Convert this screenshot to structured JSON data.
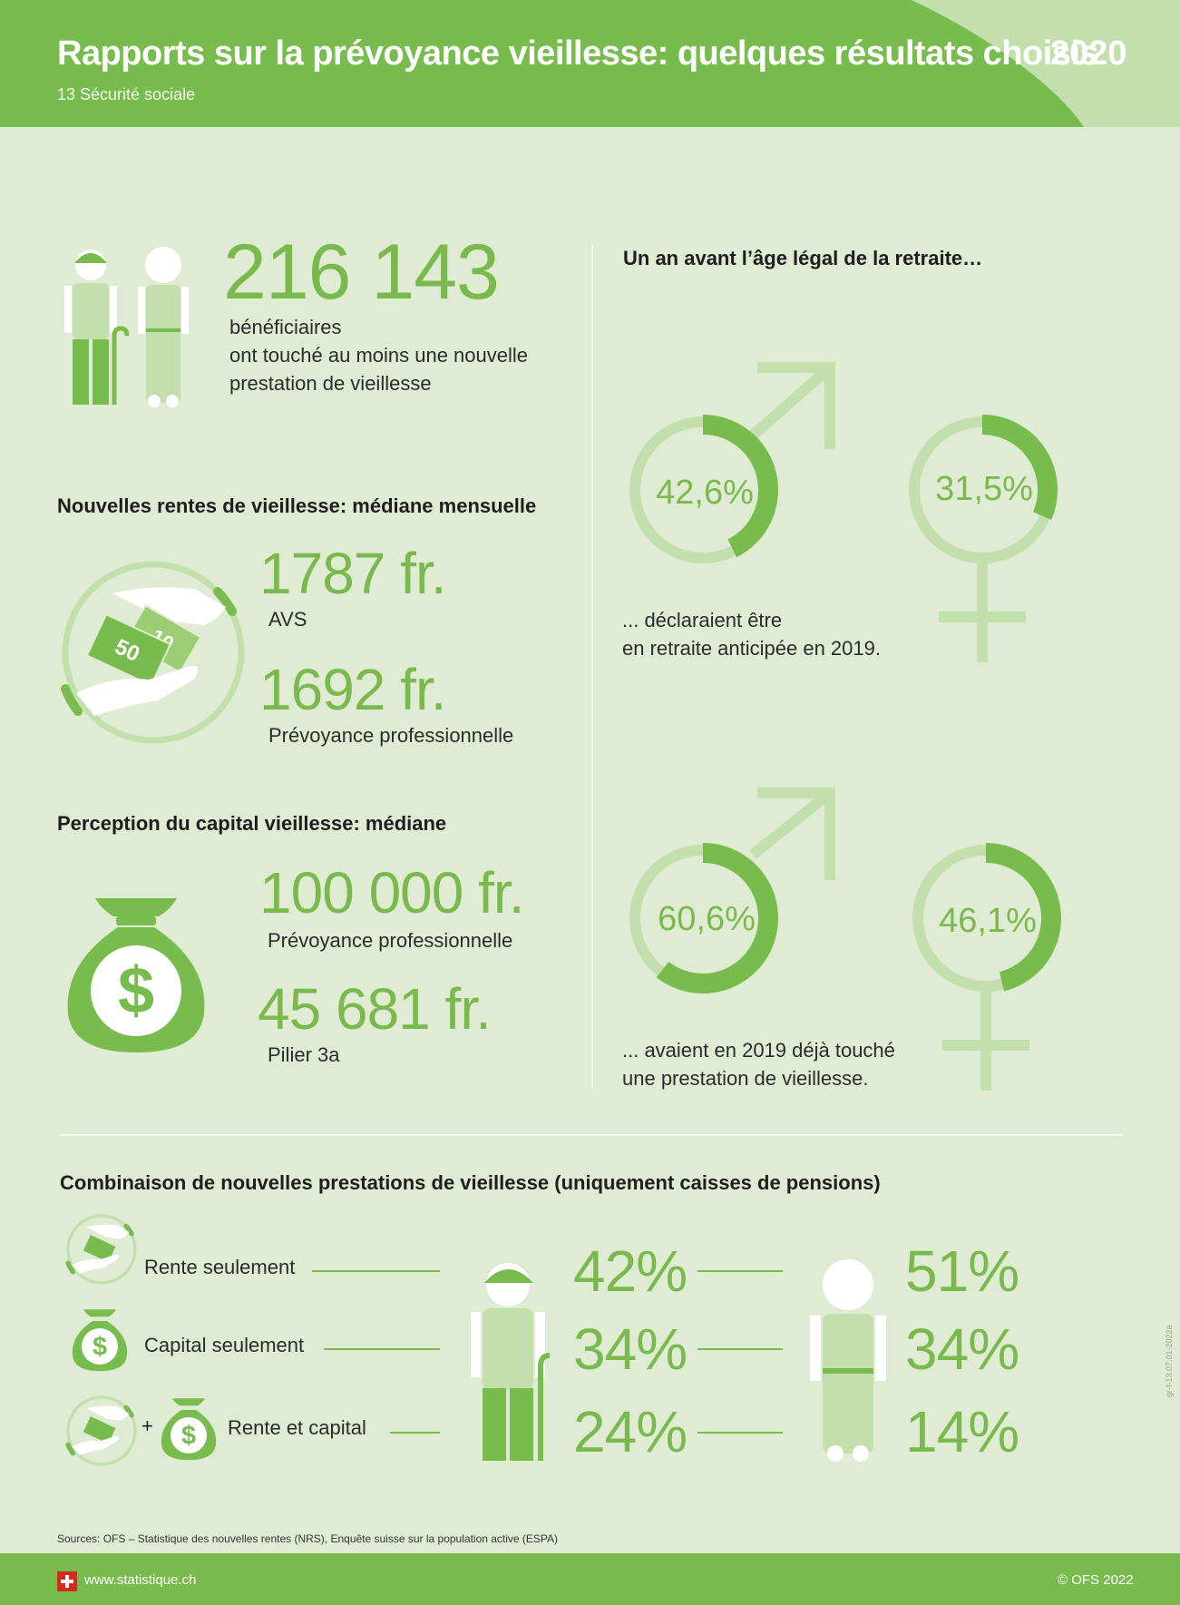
{
  "header": {
    "title": "Rapports sur la prévoyance vieillesse: quelques résultats choisis",
    "subtitle": "13 Sécurité sociale",
    "year": "2020"
  },
  "beneficiaries": {
    "value": "216 143",
    "line1": "bénéficiaires",
    "line2": "ont touché au moins une nouvelle",
    "line3": "prestation de vieillesse"
  },
  "pensions": {
    "heading": "Nouvelles rentes de vieillesse: médiane mensuelle",
    "avs_value": "1787 fr.",
    "avs_label": "AVS",
    "pp_value": "1692 fr.",
    "pp_label": "Prévoyance professionnelle",
    "note_50": "50",
    "note_10": "10"
  },
  "capital": {
    "heading": "Perception du capital vieillesse: médiane",
    "pp_value": "100 000 fr.",
    "pp_label": "Prévoyance professionnelle",
    "p3a_value": "45 681 fr.",
    "p3a_label": "Pilier 3a"
  },
  "retirement": {
    "heading": "Un an avant l’âge légal de la retraite…",
    "early": {
      "men_label": "42,6%",
      "men_value": 42.6,
      "women_label": "31,5%",
      "women_value": 31.5,
      "caption1": "... déclaraient être",
      "caption2": "en retraite anticipée en 2019."
    },
    "benefit": {
      "men_label": "60,6%",
      "men_value": 60.6,
      "women_label": "46,1%",
      "women_value": 46.1,
      "caption1": "... avaient en 2019 déjà touché",
      "caption2": "une prestation de vieillesse."
    }
  },
  "combination": {
    "heading": "Combinaison de nouvelles prestations de vieillesse (uniquement caisses de pensions)",
    "rows": [
      {
        "label": "Rente seulement",
        "men": "42%",
        "women": "51%"
      },
      {
        "label": "Capital seulement",
        "men": "34%",
        "women": "34%"
      },
      {
        "label": "Rente et capital",
        "men": "24%",
        "women": "14%"
      }
    ],
    "plus": "+"
  },
  "source": "Sources: OFS – Statistique des nouvelles rentes (NRS), Enquête suisse sur la population active (ESPA)",
  "side_code": "gr-f-13.07.01-2022a",
  "footer": {
    "website": "www.statistique.ch",
    "copyright": "© OFS 2022"
  },
  "colors": {
    "green": "#77bc4d",
    "light_green": "#c4dfae",
    "background": "#e0ebd3"
  },
  "icons": [
    "man-icon",
    "woman-icon",
    "money-hand-icon",
    "money-bag-icon",
    "male-symbol-icon",
    "female-symbol-icon",
    "swiss-flag-icon"
  ]
}
